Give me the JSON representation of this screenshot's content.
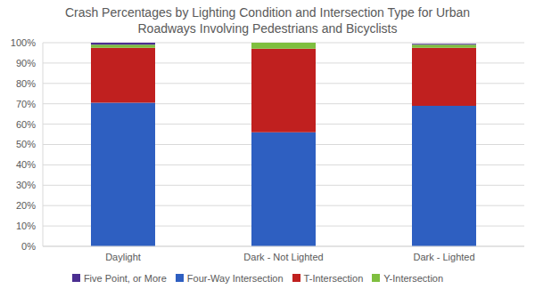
{
  "chart_data": {
    "type": "bar",
    "title": "Crash Percentages by Lighting Condition and Intersection Type for Urban Roadways Involving Pedestrians and Bicyclists",
    "categories": [
      "Daylight",
      "Dark - Not Lighted",
      "Dark - Lighted"
    ],
    "series": [
      {
        "name": "Four-Way Intersection",
        "color": "#2e5fc1",
        "values": [
          70.5,
          56,
          69
        ]
      },
      {
        "name": "T-Intersection",
        "color": "#c0201f",
        "values": [
          27,
          41,
          28.5
        ]
      },
      {
        "name": "Y-Intersection",
        "color": "#7fbf3f",
        "values": [
          1.5,
          3,
          1.5
        ]
      },
      {
        "name": "Five Point, or More",
        "color": "#4b2e91",
        "values": [
          1,
          0,
          0.5
        ]
      }
    ],
    "stacked": true,
    "ylim": [
      0,
      100
    ],
    "yticks": [
      {
        "value": 0,
        "label": "0%"
      },
      {
        "value": 10,
        "label": "10%"
      },
      {
        "value": 20,
        "label": "20%"
      },
      {
        "value": 30,
        "label": "30%"
      },
      {
        "value": 40,
        "label": "40%"
      },
      {
        "value": 50,
        "label": "50%"
      },
      {
        "value": 60,
        "label": "60%"
      },
      {
        "value": 70,
        "label": "70%"
      },
      {
        "value": 80,
        "label": "80%"
      },
      {
        "value": 90,
        "label": "90%"
      },
      {
        "value": 100,
        "label": "100%"
      }
    ],
    "grid": true,
    "legend": "bottom"
  }
}
